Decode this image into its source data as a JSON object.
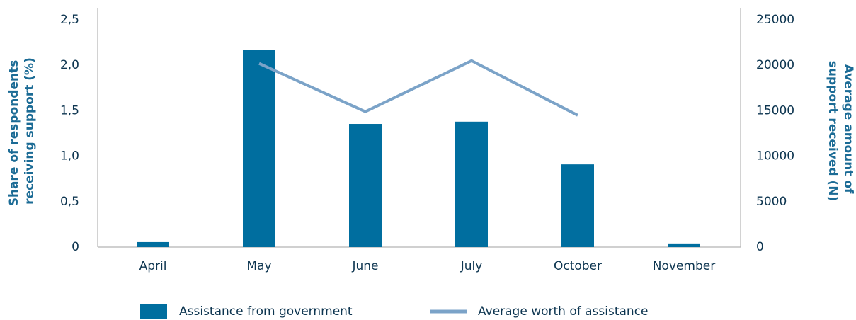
{
  "chart_data": {
    "type": "bar",
    "categories": [
      "April",
      "May",
      "June",
      "July",
      "October",
      "November"
    ],
    "series": [
      {
        "name": "Assistance from government",
        "type": "bar",
        "color": "#006e9f",
        "values": [
          0.055,
          2.17,
          1.355,
          1.38,
          0.91,
          0.04
        ]
      },
      {
        "name": "Average worth of assistance",
        "type": "line",
        "axis": "y2",
        "color": "#7ba3c8",
        "values": [
          null,
          20200,
          14900,
          20500,
          14500,
          null
        ]
      }
    ],
    "y_label": [
      "Share of respondents",
      "receiving support (%)"
    ],
    "y2_label": [
      "Average amount of",
      "support received (N)"
    ],
    "ylim": [
      0,
      2.5
    ],
    "yticks": [
      0,
      {
        "value": 0.5,
        "label": "0,5"
      },
      {
        "value": 1.0,
        "label": "1,0"
      },
      {
        "value": 1.5,
        "label": "1,5"
      },
      {
        "value": 2.0,
        "label": "2,0"
      },
      {
        "value": 2.5,
        "label": "2,5"
      }
    ],
    "y2lim": [
      0,
      25000
    ],
    "y2ticks": [
      0,
      5000,
      10000,
      15000,
      20000,
      25000
    ],
    "grid": false,
    "legend": "bottom"
  }
}
